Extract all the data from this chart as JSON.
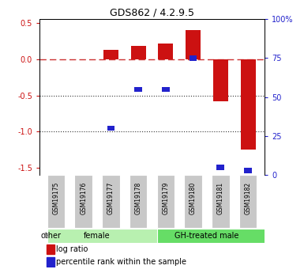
{
  "title": "GDS862 / 4.2.9.5",
  "samples": [
    "GSM19175",
    "GSM19176",
    "GSM19177",
    "GSM19178",
    "GSM19179",
    "GSM19180",
    "GSM19181",
    "GSM19182"
  ],
  "log_ratio": [
    0.0,
    0.0,
    0.13,
    0.185,
    0.21,
    0.4,
    -0.58,
    -1.25
  ],
  "percentile_rank": [
    null,
    null,
    30,
    55,
    55,
    75,
    5,
    3
  ],
  "groups": [
    {
      "label": "female",
      "start": 0,
      "end": 4,
      "color": "#b8f0b0"
    },
    {
      "label": "GH-treated male",
      "start": 4,
      "end": 8,
      "color": "#66dd66"
    }
  ],
  "ylim_left": [
    -1.6,
    0.55
  ],
  "ylim_right": [
    0,
    100
  ],
  "yticks_left": [
    0.5,
    0.0,
    -0.5,
    -1.0,
    -1.5
  ],
  "yticks_right": [
    100,
    75,
    50,
    25,
    0
  ],
  "bar_color_red": "#cc1111",
  "bar_color_blue": "#2222cc",
  "hline_color": "#cc3333",
  "dotline_color": "#333333",
  "bar_width": 0.55,
  "sample_box_color": "#c8c8c8",
  "other_label": "other",
  "legend_red": "log ratio",
  "legend_blue": "percentile rank within the sample",
  "bg_color": "#ffffff"
}
